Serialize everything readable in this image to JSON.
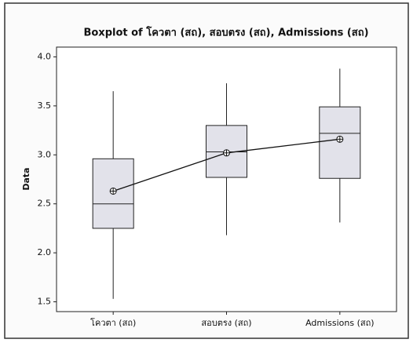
{
  "chart_data": {
    "type": "box",
    "title": "Boxplot of โควตา (สถ), สอบตรง (สถ), Admissions (สถ)",
    "y_label": "Data",
    "categories": [
      "โควตา (สถ)",
      "สอบตรง (สถ)",
      "Admissions (สถ)"
    ],
    "whisker_low": [
      1.53,
      2.18,
      2.31
    ],
    "q1": [
      2.25,
      2.77,
      2.76
    ],
    "median": [
      2.5,
      3.03,
      3.22
    ],
    "q3": [
      2.96,
      3.3,
      3.49
    ],
    "whisker_high": [
      3.65,
      3.73,
      3.88
    ],
    "mean": [
      2.63,
      3.02,
      3.16
    ],
    "box_color": "#e2e2ea",
    "ylim": [
      1.4,
      4.1
    ],
    "yticks": [
      {
        "value": 1.5,
        "label": "1.5"
      },
      {
        "value": 2,
        "label": "2.0"
      },
      {
        "value": 2.5,
        "label": "2.5"
      },
      {
        "value": 3,
        "label": "3.0"
      },
      {
        "value": 3.5,
        "label": "3.5"
      },
      {
        "value": 4,
        "label": "4.0"
      }
    ]
  }
}
